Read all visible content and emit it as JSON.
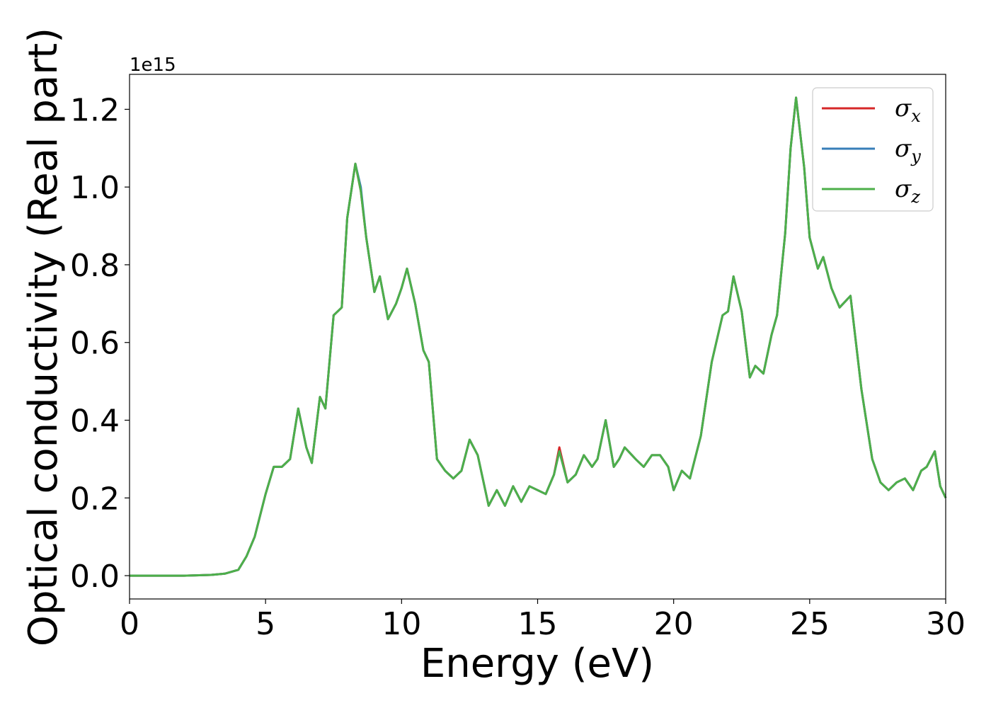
{
  "chart_data": {
    "type": "line",
    "title": "",
    "xlabel": "Energy (eV)",
    "ylabel": "Optical conductivity (Real part)",
    "y_offset_text": "1e15",
    "xlim": [
      0,
      30
    ],
    "ylim": [
      -0.06,
      1.29
    ],
    "xticks": [
      0,
      5,
      10,
      15,
      20,
      25,
      30
    ],
    "xtick_labels": [
      "0",
      "5",
      "10",
      "15",
      "20",
      "25",
      "30"
    ],
    "yticks": [
      0.0,
      0.2,
      0.4,
      0.6,
      0.8,
      1.0,
      1.2
    ],
    "ytick_labels": [
      "0.0",
      "0.2",
      "0.4",
      "0.6",
      "0.8",
      "1.0",
      "1.2"
    ],
    "grid": false,
    "legend_position": "upper right",
    "x": [
      0,
      1,
      2,
      3,
      3.5,
      4,
      4.3,
      4.6,
      5.0,
      5.3,
      5.6,
      5.9,
      6.2,
      6.5,
      6.7,
      7.0,
      7.2,
      7.5,
      7.8,
      8.0,
      8.3,
      8.5,
      8.7,
      9.0,
      9.2,
      9.5,
      9.8,
      10.0,
      10.2,
      10.5,
      10.8,
      11.0,
      11.3,
      11.6,
      11.9,
      12.2,
      12.5,
      12.8,
      13.2,
      13.5,
      13.8,
      14.1,
      14.4,
      14.7,
      15.0,
      15.3,
      15.6,
      15.8,
      16.1,
      16.4,
      16.7,
      17.0,
      17.2,
      17.5,
      17.8,
      18.0,
      18.2,
      18.6,
      18.9,
      19.2,
      19.5,
      19.8,
      20.0,
      20.3,
      20.6,
      21.0,
      21.4,
      21.8,
      22.0,
      22.2,
      22.5,
      22.8,
      23.0,
      23.3,
      23.6,
      23.8,
      24.1,
      24.3,
      24.5,
      24.8,
      25.0,
      25.3,
      25.5,
      25.8,
      26.1,
      26.5,
      26.9,
      27.3,
      27.6,
      27.9,
      28.2,
      28.5,
      28.8,
      29.1,
      29.3,
      29.6,
      29.8,
      30.0
    ],
    "series": [
      {
        "name": "σx",
        "legend_base": "σ",
        "legend_sub": "x",
        "color": "#d62728",
        "values": [
          0,
          0,
          0,
          0.002,
          0.005,
          0.015,
          0.05,
          0.1,
          0.21,
          0.28,
          0.28,
          0.3,
          0.43,
          0.33,
          0.29,
          0.46,
          0.43,
          0.67,
          0.69,
          0.92,
          1.06,
          0.99,
          0.87,
          0.73,
          0.77,
          0.66,
          0.7,
          0.74,
          0.79,
          0.7,
          0.58,
          0.55,
          0.3,
          0.27,
          0.25,
          0.27,
          0.35,
          0.31,
          0.18,
          0.22,
          0.18,
          0.23,
          0.19,
          0.23,
          0.22,
          0.21,
          0.26,
          0.33,
          0.24,
          0.26,
          0.31,
          0.28,
          0.3,
          0.4,
          0.28,
          0.3,
          0.33,
          0.3,
          0.28,
          0.31,
          0.31,
          0.28,
          0.22,
          0.27,
          0.25,
          0.36,
          0.55,
          0.67,
          0.68,
          0.77,
          0.68,
          0.51,
          0.54,
          0.52,
          0.62,
          0.67,
          0.88,
          1.1,
          1.23,
          1.05,
          0.87,
          0.79,
          0.82,
          0.74,
          0.69,
          0.72,
          0.48,
          0.3,
          0.24,
          0.22,
          0.24,
          0.25,
          0.22,
          0.27,
          0.28,
          0.32,
          0.23,
          0.2
        ]
      },
      {
        "name": "σy",
        "legend_base": "σ",
        "legend_sub": "y",
        "color": "#377eb8",
        "values": [
          0,
          0,
          0,
          0.002,
          0.005,
          0.015,
          0.05,
          0.1,
          0.21,
          0.28,
          0.28,
          0.3,
          0.43,
          0.33,
          0.29,
          0.46,
          0.43,
          0.67,
          0.69,
          0.92,
          1.06,
          1.0,
          0.87,
          0.73,
          0.77,
          0.66,
          0.7,
          0.74,
          0.79,
          0.7,
          0.58,
          0.55,
          0.3,
          0.27,
          0.25,
          0.27,
          0.35,
          0.31,
          0.18,
          0.22,
          0.18,
          0.23,
          0.19,
          0.23,
          0.22,
          0.21,
          0.26,
          0.32,
          0.24,
          0.26,
          0.31,
          0.28,
          0.3,
          0.4,
          0.28,
          0.3,
          0.33,
          0.3,
          0.28,
          0.31,
          0.31,
          0.28,
          0.22,
          0.27,
          0.25,
          0.36,
          0.55,
          0.67,
          0.68,
          0.77,
          0.68,
          0.51,
          0.54,
          0.52,
          0.62,
          0.67,
          0.88,
          1.1,
          1.23,
          1.05,
          0.87,
          0.79,
          0.82,
          0.74,
          0.69,
          0.72,
          0.48,
          0.3,
          0.24,
          0.22,
          0.24,
          0.25,
          0.22,
          0.27,
          0.28,
          0.32,
          0.23,
          0.2
        ]
      },
      {
        "name": "σz",
        "legend_base": "σ",
        "legend_sub": "z",
        "color": "#4daf4a",
        "values": [
          0,
          0,
          0,
          0.002,
          0.005,
          0.015,
          0.05,
          0.1,
          0.21,
          0.28,
          0.28,
          0.3,
          0.43,
          0.33,
          0.29,
          0.46,
          0.43,
          0.67,
          0.69,
          0.92,
          1.06,
          0.99,
          0.87,
          0.73,
          0.77,
          0.66,
          0.7,
          0.74,
          0.79,
          0.7,
          0.58,
          0.55,
          0.3,
          0.27,
          0.25,
          0.27,
          0.35,
          0.31,
          0.18,
          0.22,
          0.18,
          0.23,
          0.19,
          0.23,
          0.22,
          0.21,
          0.26,
          0.32,
          0.24,
          0.26,
          0.31,
          0.28,
          0.3,
          0.4,
          0.28,
          0.3,
          0.33,
          0.3,
          0.28,
          0.31,
          0.31,
          0.28,
          0.22,
          0.27,
          0.25,
          0.36,
          0.55,
          0.67,
          0.68,
          0.77,
          0.68,
          0.51,
          0.54,
          0.52,
          0.62,
          0.67,
          0.88,
          1.1,
          1.23,
          1.05,
          0.87,
          0.79,
          0.82,
          0.74,
          0.69,
          0.72,
          0.48,
          0.3,
          0.24,
          0.22,
          0.24,
          0.25,
          0.22,
          0.27,
          0.28,
          0.32,
          0.23,
          0.2
        ]
      }
    ]
  }
}
